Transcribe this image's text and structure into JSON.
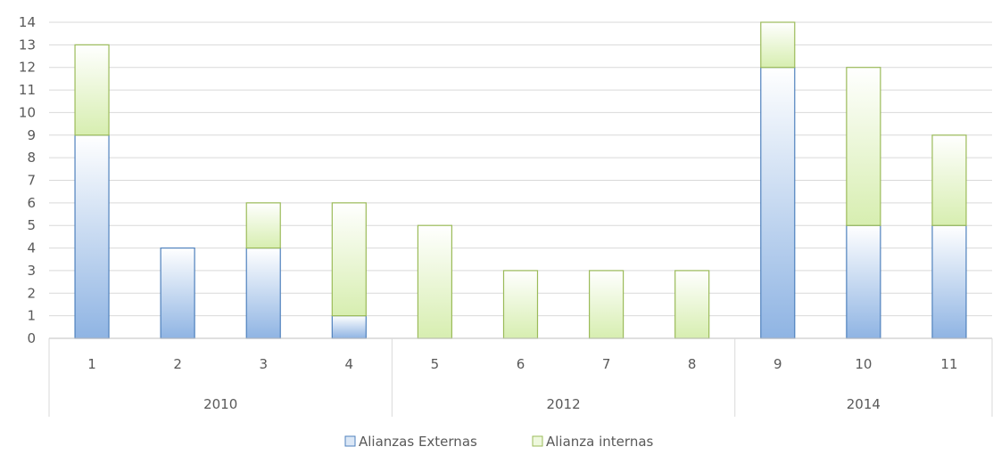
{
  "chart_data": {
    "type": "bar",
    "stacked": true,
    "categories": [
      "1",
      "2",
      "3",
      "4",
      "5",
      "6",
      "7",
      "8",
      "9",
      "10",
      "11"
    ],
    "groups": [
      {
        "label": "2010",
        "categories": [
          "1",
          "2",
          "3",
          "4"
        ]
      },
      {
        "label": "2012",
        "categories": [
          "5",
          "6",
          "7",
          "8"
        ]
      },
      {
        "label": "2014",
        "categories": [
          "9",
          "10",
          "11"
        ]
      }
    ],
    "series": [
      {
        "name": "Alianzas Externas",
        "values": [
          9,
          4,
          4,
          1,
          0,
          0,
          0,
          0,
          12,
          5,
          5
        ],
        "color": "#8fb4e3",
        "stroke": "#4f81bd"
      },
      {
        "name": "Alianza internas",
        "values": [
          4,
          0,
          2,
          5,
          5,
          3,
          3,
          3,
          2,
          7,
          4
        ],
        "color": "#d7eeb0",
        "stroke": "#9bbb59"
      }
    ],
    "ylim": [
      0,
      14
    ],
    "yticks": [
      0,
      1,
      2,
      3,
      4,
      5,
      6,
      7,
      8,
      9,
      10,
      11,
      12,
      13,
      14
    ],
    "grid": true,
    "legend_position": "bottom",
    "title": "",
    "xlabel": "",
    "ylabel": ""
  }
}
